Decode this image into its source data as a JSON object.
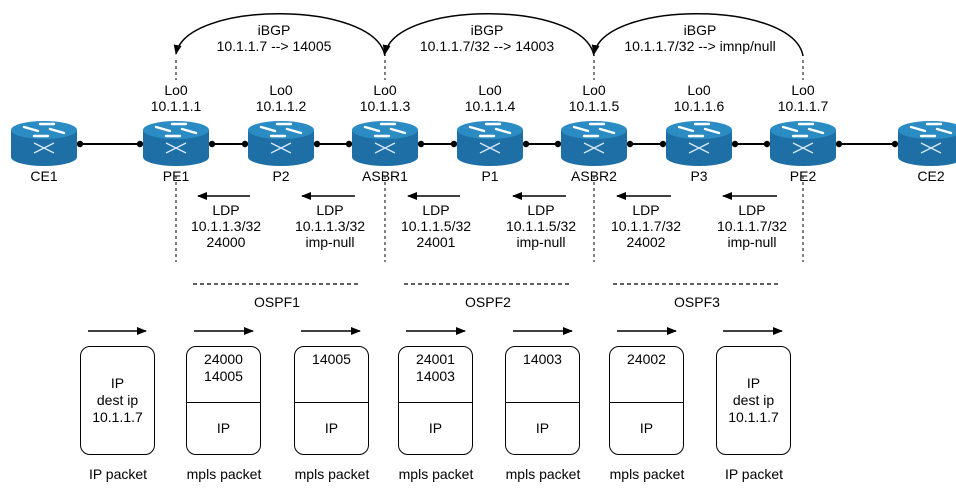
{
  "colors": {
    "router_body": "#1d6fa5",
    "router_top": "#2b8cc4",
    "line": "#000000"
  },
  "ibgp": [
    {
      "title": "iBGP",
      "route": "10.1.1.7 --> 14005"
    },
    {
      "title": "iBGP",
      "route": "10.1.1.7/32 --> 14003"
    },
    {
      "title": "iBGP",
      "route": "10.1.1.7/32 --> imnp/null"
    }
  ],
  "routers": [
    {
      "name": "CE1",
      "icon": "router-icon"
    },
    {
      "name": "PE1",
      "lo": "Lo0",
      "ip": "10.1.1.1",
      "icon": "router-icon"
    },
    {
      "name": "P2",
      "lo": "Lo0",
      "ip": "10.1.1.2",
      "icon": "router-icon"
    },
    {
      "name": "ASBR1",
      "lo": "Lo0",
      "ip": "10.1.1.3",
      "icon": "router-icon"
    },
    {
      "name": "P1",
      "lo": "Lo0",
      "ip": "10.1.1.4",
      "icon": "router-icon"
    },
    {
      "name": "ASBR2",
      "lo": "Lo0",
      "ip": "10.1.1.5",
      "icon": "router-icon"
    },
    {
      "name": "P3",
      "lo": "Lo0",
      "ip": "10.1.1.6",
      "icon": "router-icon"
    },
    {
      "name": "PE2",
      "lo": "Lo0",
      "ip": "10.1.1.7",
      "icon": "router-icon"
    },
    {
      "name": "CE2",
      "icon": "router-icon"
    }
  ],
  "ldp": [
    {
      "proto": "LDP",
      "prefix": "10.1.1.3/32",
      "label": "24000"
    },
    {
      "proto": "LDP",
      "prefix": "10.1.1.3/32",
      "label": "imp-null"
    },
    {
      "proto": "LDP",
      "prefix": "10.1.1.5/32",
      "label": "24001"
    },
    {
      "proto": "LDP",
      "prefix": "10.1.1.5/32",
      "label": "imp-null"
    },
    {
      "proto": "LDP",
      "prefix": "10.1.1.7/32",
      "label": "24002"
    },
    {
      "proto": "LDP",
      "prefix": "10.1.1.7/32",
      "label": "imp-null"
    }
  ],
  "ospf": [
    "OSPF1",
    "OSPF2",
    "OSPF3"
  ],
  "packets": [
    {
      "type": "IP packet",
      "full": [
        "IP",
        "dest ip",
        "10.1.1.7"
      ]
    },
    {
      "type": "mpls packet",
      "top": [
        "24000",
        "14005"
      ],
      "bottom": "IP"
    },
    {
      "type": "mpls packet",
      "top": [
        "14005"
      ],
      "bottom": "IP"
    },
    {
      "type": "mpls packet",
      "top": [
        "24001",
        "14003"
      ],
      "bottom": "IP"
    },
    {
      "type": "mpls packet",
      "top": [
        "14003"
      ],
      "bottom": "IP"
    },
    {
      "type": "mpls packet",
      "top": [
        "24002"
      ],
      "bottom": "IP"
    },
    {
      "type": "IP packet",
      "full": [
        "IP",
        "dest ip",
        "10.1.1.7"
      ]
    }
  ]
}
